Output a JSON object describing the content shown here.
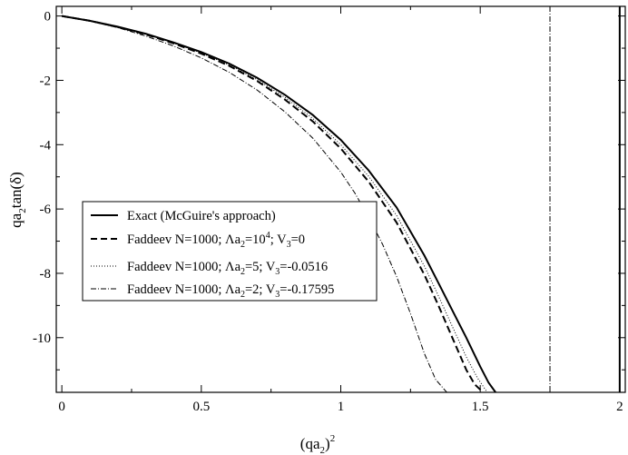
{
  "chart_data": {
    "type": "line",
    "xlabel": {
      "base": "(qa",
      "sub": "2",
      "tail": ")",
      "sup": "2"
    },
    "ylabel": {
      "base": "qa",
      "sub": "2",
      "tail": "tan(δ)"
    },
    "xlim": [
      -0.02,
      2.02
    ],
    "ylim": [
      -11.7,
      0.3
    ],
    "x_ticks": [
      0,
      0.5,
      1,
      1.5,
      2
    ],
    "x_tick_labels": [
      "0",
      "0.5",
      "1",
      "1.5",
      "2"
    ],
    "y_ticks": [
      0,
      -2,
      -4,
      -6,
      -8,
      -10
    ],
    "y_tick_labels": [
      "0",
      "-2",
      "-4",
      "-6",
      "-8",
      "-10"
    ],
    "grid": false,
    "legend_position": "center-left",
    "vertical_lines": [
      {
        "x": 1.75,
        "style": "dash-dot"
      },
      {
        "x": 2.0,
        "style": "solid"
      }
    ],
    "series": [
      {
        "legend": {
          "text": "Exact (McGuire's approach)"
        },
        "style": "solid",
        "x": [
          0,
          0.1,
          0.2,
          0.3,
          0.4,
          0.5,
          0.6,
          0.7,
          0.8,
          0.9,
          1.0,
          1.1,
          1.2,
          1.3,
          1.35,
          1.4,
          1.45,
          1.5,
          1.53,
          1.555
        ],
        "y": [
          0,
          -0.15,
          -0.33,
          -0.55,
          -0.82,
          -1.12,
          -1.48,
          -1.92,
          -2.45,
          -3.08,
          -3.85,
          -4.8,
          -5.95,
          -7.45,
          -8.3,
          -9.15,
          -10.0,
          -10.9,
          -11.4,
          -11.7
        ]
      },
      {
        "legend": {
          "t1": "Faddeev N=1000; Λa",
          "s1": "2",
          "t2": "=10",
          "p1": "4",
          "t3": "; V",
          "s2": "3",
          "t4": "=0"
        },
        "style": "dashed",
        "x": [
          0,
          0.1,
          0.2,
          0.3,
          0.4,
          0.5,
          0.6,
          0.7,
          0.8,
          0.9,
          1.0,
          1.1,
          1.2,
          1.3,
          1.35,
          1.4,
          1.45,
          1.48,
          1.51
        ],
        "y": [
          0,
          -0.15,
          -0.34,
          -0.57,
          -0.85,
          -1.17,
          -1.55,
          -2.02,
          -2.6,
          -3.28,
          -4.12,
          -5.15,
          -6.42,
          -8.05,
          -9.0,
          -10.0,
          -11.0,
          -11.45,
          -11.7
        ]
      },
      {
        "legend": {
          "t1": "Faddeev N=1000; Λa",
          "s1": "2",
          "t2": "=5; V",
          "s2": "3",
          "t3": "=-0.0516"
        },
        "style": "dotted",
        "x": [
          0,
          0.1,
          0.2,
          0.3,
          0.4,
          0.5,
          0.6,
          0.7,
          0.8,
          0.9,
          1.0,
          1.1,
          1.2,
          1.3,
          1.35,
          1.4,
          1.45,
          1.49,
          1.525
        ],
        "y": [
          0,
          -0.15,
          -0.34,
          -0.56,
          -0.84,
          -1.15,
          -1.52,
          -1.98,
          -2.53,
          -3.19,
          -4.0,
          -4.98,
          -6.2,
          -7.78,
          -8.7,
          -9.65,
          -10.6,
          -11.25,
          -11.7
        ]
      },
      {
        "legend": {
          "t1": "Faddeev N=1000; Λa",
          "s1": "2",
          "t2": "=2; V",
          "s2": "3",
          "t3": "=-0.17595"
        },
        "style": "dash-dot",
        "x": [
          0,
          0.1,
          0.2,
          0.3,
          0.4,
          0.5,
          0.6,
          0.7,
          0.8,
          0.9,
          1.0,
          1.05,
          1.1,
          1.15,
          1.2,
          1.25,
          1.3,
          1.34,
          1.38
        ],
        "y": [
          0,
          -0.16,
          -0.36,
          -0.62,
          -0.93,
          -1.3,
          -1.75,
          -2.3,
          -2.98,
          -3.8,
          -4.85,
          -5.5,
          -6.25,
          -7.1,
          -8.1,
          -9.25,
          -10.5,
          -11.3,
          -11.7
        ]
      }
    ]
  }
}
